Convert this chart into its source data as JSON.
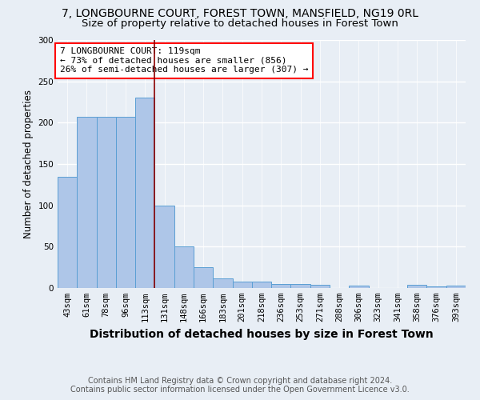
{
  "title_line1": "7, LONGBOURNE COURT, FOREST TOWN, MANSFIELD, NG19 0RL",
  "title_line2": "Size of property relative to detached houses in Forest Town",
  "xlabel": "Distribution of detached houses by size in Forest Town",
  "ylabel": "Number of detached properties",
  "categories": [
    "43sqm",
    "61sqm",
    "78sqm",
    "96sqm",
    "113sqm",
    "131sqm",
    "148sqm",
    "166sqm",
    "183sqm",
    "201sqm",
    "218sqm",
    "236sqm",
    "253sqm",
    "271sqm",
    "288sqm",
    "306sqm",
    "323sqm",
    "341sqm",
    "358sqm",
    "376sqm",
    "393sqm"
  ],
  "values": [
    135,
    207,
    207,
    207,
    230,
    100,
    50,
    25,
    12,
    8,
    8,
    5,
    5,
    4,
    0,
    3,
    0,
    0,
    4,
    2,
    3
  ],
  "bar_color": "#aec6e8",
  "bar_edge_color": "#5a9fd4",
  "ylim": [
    0,
    300
  ],
  "yticks": [
    0,
    50,
    100,
    150,
    200,
    250,
    300
  ],
  "property_line_x": 4.5,
  "annotation_text": "7 LONGBOURNE COURT: 119sqm\n← 73% of detached houses are smaller (856)\n26% of semi-detached houses are larger (307) →",
  "annotation_box_color": "white",
  "annotation_box_edge_color": "red",
  "vline_color": "#8b0000",
  "footer_line1": "Contains HM Land Registry data © Crown copyright and database right 2024.",
  "footer_line2": "Contains public sector information licensed under the Open Government Licence v3.0.",
  "background_color": "#e8eef5",
  "plot_bg_color": "#e8eef5",
  "grid_color": "white",
  "title_fontsize": 10,
  "subtitle_fontsize": 9.5,
  "xlabel_fontsize": 10,
  "ylabel_fontsize": 8.5,
  "tick_fontsize": 7.5,
  "annotation_fontsize": 8,
  "footer_fontsize": 7
}
